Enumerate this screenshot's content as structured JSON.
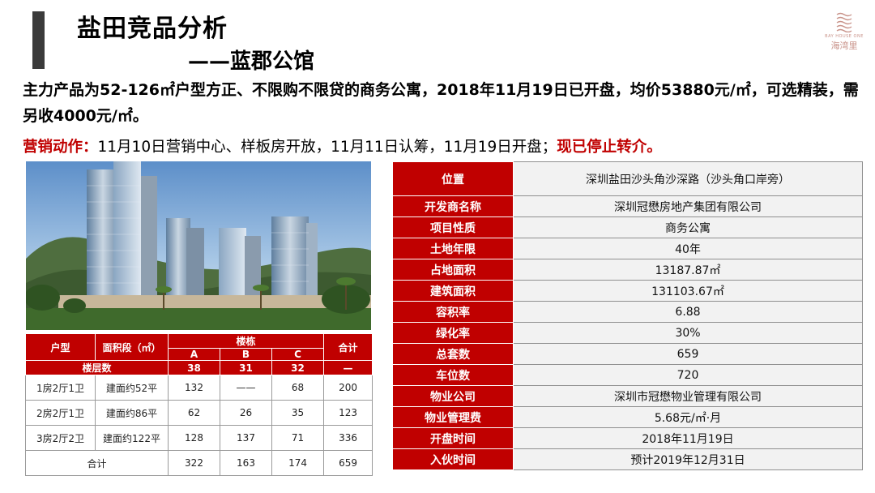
{
  "header": {
    "title": "盐田竞品分析",
    "subtitle": "——蓝郡公馆"
  },
  "logo": {
    "english": "BAY HOUSE ONE",
    "chinese": "海湾里",
    "color": "#c9938a"
  },
  "intro": {
    "text": "主力产品为52-126㎡户型方正、不限购不限贷的商务公寓，2018年11月19日已开盘，均价53880元/㎡，可选精装，需另收4000元/㎡。"
  },
  "marketing": {
    "label": "营销动作：",
    "text": "11月10日营销中心、样板房开放，11月11日认筹，11月19日开盘；",
    "highlight": "现已停止转介。"
  },
  "unit_table": {
    "headers": {
      "type": "户型",
      "area": "面积段（㎡）",
      "buildings": "楼栋",
      "total": "合计",
      "floors": "楼层数"
    },
    "building_names": [
      "A",
      "B",
      "C"
    ],
    "floor_counts": [
      "38",
      "31",
      "32"
    ],
    "floor_total": "—",
    "rows": [
      {
        "type": "1房2厅1卫",
        "area": "建面约52平",
        "a": "132",
        "b": "——",
        "c": "68",
        "total": "200"
      },
      {
        "type": "2房2厅1卫",
        "area": "建面约86平",
        "a": "62",
        "b": "26",
        "c": "35",
        "total": "123"
      },
      {
        "type": "3房2厅2卫",
        "area": "建面约122平",
        "a": "128",
        "b": "137",
        "c": "71",
        "total": "336"
      }
    ],
    "sum_row": {
      "label": "合计",
      "a": "322",
      "b": "163",
      "c": "174",
      "total": "659"
    }
  },
  "project_info": [
    {
      "key": "位置",
      "value": "深圳盐田沙头角沙深路（沙头角口岸旁）"
    },
    {
      "key": "开发商名称",
      "value": "深圳冠懋房地产集团有限公司"
    },
    {
      "key": "项目性质",
      "value": "商务公寓"
    },
    {
      "key": "土地年限",
      "value": "40年"
    },
    {
      "key": "占地面积",
      "value": "13187.87㎡"
    },
    {
      "key": "建筑面积",
      "value": "131103.67㎡"
    },
    {
      "key": "容积率",
      "value": "6.88"
    },
    {
      "key": "绿化率",
      "value": "30%"
    },
    {
      "key": "总套数",
      "value": "659"
    },
    {
      "key": "车位数",
      "value": "720"
    },
    {
      "key": "物业公司",
      "value": "深圳市冠懋物业管理有限公司"
    },
    {
      "key": "物业管理费",
      "value": "5.68元/㎡·月"
    },
    {
      "key": "开盘时间",
      "value": "2018年11月19日"
    },
    {
      "key": "入伙时间",
      "value": "预计2019年12月31日"
    }
  ],
  "colors": {
    "accent_red": "#c00000",
    "title_bar": "#3b3b3b",
    "info_value_bg": "#f2f2f2"
  }
}
